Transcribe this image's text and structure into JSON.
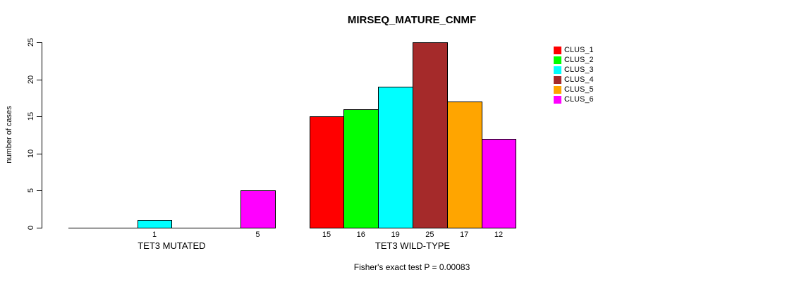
{
  "chart_data": {
    "type": "bar",
    "title": "MIRSEQ_MATURE_CNMF",
    "ylabel": "number of cases",
    "xlabel": "",
    "ylim": [
      0,
      25
    ],
    "yticks": [
      0,
      5,
      10,
      15,
      20,
      25
    ],
    "grid": false,
    "legend_position": "right",
    "annotation": "Fisher's exact test P = 0.00083",
    "categories": [
      "TET3 MUTATED",
      "TET3 WILD-TYPE"
    ],
    "series": [
      {
        "name": "CLUS_1",
        "color": "#FF0000",
        "values": [
          0,
          15
        ]
      },
      {
        "name": "CLUS_2",
        "color": "#00FF00",
        "values": [
          0,
          16
        ]
      },
      {
        "name": "CLUS_3",
        "color": "#00FFFF",
        "values": [
          1,
          19
        ]
      },
      {
        "name": "CLUS_4",
        "color": "#A52A2A",
        "values": [
          0,
          25
        ]
      },
      {
        "name": "CLUS_5",
        "color": "#FFA500",
        "values": [
          0,
          17
        ]
      },
      {
        "name": "CLUS_6",
        "color": "#FF00FF",
        "values": [
          5,
          12
        ]
      }
    ],
    "bar_labels": [
      [
        "",
        "",
        "1",
        "",
        "",
        "5"
      ],
      [
        "15",
        "16",
        "19",
        "25",
        "17",
        "12"
      ]
    ]
  },
  "colors": {
    "foreground": "#000000",
    "background": "#FFFFFF"
  }
}
